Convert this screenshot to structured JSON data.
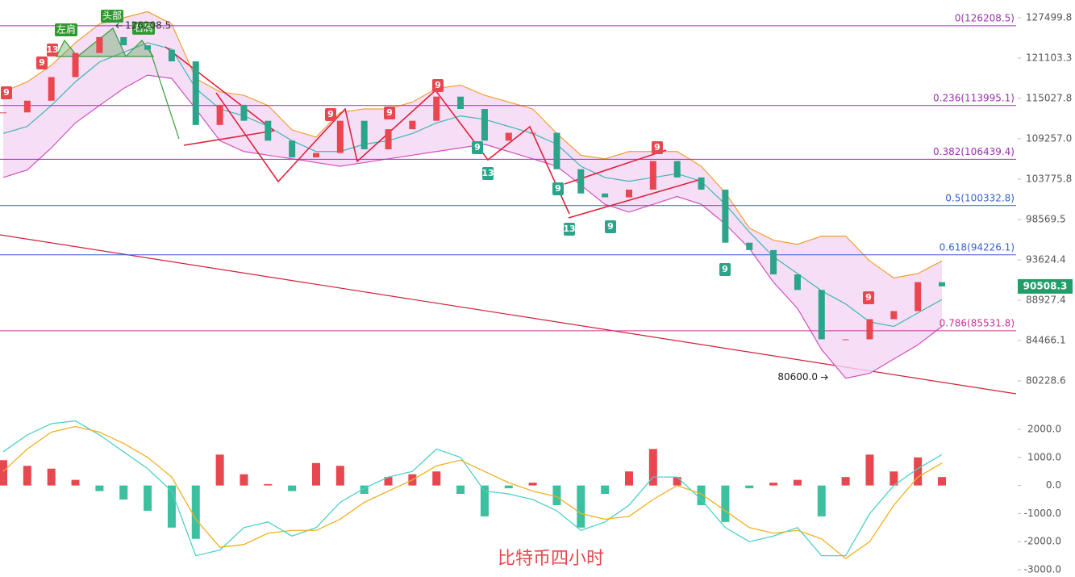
{
  "chart_data": [
    {
      "type": "candlestick",
      "title": "比特币四小时",
      "log_scale": true,
      "ylim": [
        77152,
        130421
      ],
      "yticks": [
        127499.8,
        121103.3,
        115027.8,
        {
          "value": 109257,
          "label": "109257.0"
        },
        103775.8,
        98569.5,
        93624.4,
        88927.4,
        84466.1,
        80228.6
      ],
      "up_color": "#e8474f",
      "down_color": "#2aa58a",
      "values": [
        113000,
        114700,
        118200,
        121900,
        124400,
        123100,
        122400,
        120600,
        111200,
        114100,
        111800,
        109000,
        106700,
        107300,
        111800,
        107800,
        110600,
        111800,
        115300,
        113500,
        109000,
        110100,
        110100,
        105100,
        101900,
        101400,
        102400,
        106200,
        104000,
        102400,
        95700,
        94800,
        91900,
        90100,
        84600,
        84600,
        86800,
        87700,
        91000,
        90508.3
      ],
      "bands": [
        {
          "color": "#f0a030",
          "values": [
            116000,
            117500,
            120000,
            123500,
            126500,
            127500,
            128500,
            126500,
            118000,
            116000,
            115500,
            114000,
            110500,
            109500,
            113000,
            113500,
            113500,
            114500,
            116500,
            117000,
            115500,
            114500,
            113500,
            110000,
            107000,
            106500,
            107500,
            107500,
            107500,
            105500,
            102000,
            97500,
            96000,
            95500,
            96500,
            96500,
            93500,
            91500,
            92000,
            93500
          ]
        },
        {
          "color": "#3cb8b0",
          "values": [
            110000,
            111000,
            114000,
            117500,
            120500,
            122000,
            123500,
            122500,
            116500,
            113500,
            112500,
            111000,
            109000,
            107500,
            107500,
            108500,
            109000,
            110000,
            111500,
            112500,
            112000,
            111000,
            110000,
            108500,
            105500,
            104000,
            103500,
            104000,
            104500,
            103500,
            100500,
            97000,
            94000,
            92000,
            90000,
            88500,
            86500,
            86000,
            87500,
            89000
          ]
        },
        {
          "color": "#d04fc0",
          "values": [
            104000,
            105000,
            108000,
            111500,
            114000,
            116500,
            118500,
            118000,
            113500,
            109000,
            107500,
            107000,
            106500,
            106000,
            105500,
            106000,
            106500,
            107000,
            107500,
            108000,
            108500,
            107500,
            106500,
            105500,
            103000,
            100500,
            99500,
            100500,
            101500,
            100500,
            98000,
            95000,
            91000,
            88000,
            83500,
            80500,
            81000,
            82500,
            84000,
            86000
          ]
        }
      ],
      "band_fill": "#f5d6f5",
      "fib_levels": [
        {
          "label": "0(126208.5)",
          "value": 126208.5,
          "color": "#9b30b0"
        },
        {
          "label": "0.236(113995.1)",
          "value": 113995.1,
          "color": "#9b30b0"
        },
        {
          "label": "0.382(106439.4)",
          "value": 106439.4,
          "color": "#9b30b0"
        },
        {
          "label": "0.5(100332.8)",
          "value": 100332.8,
          "color": "#3a5fcf"
        },
        {
          "label": "0.618(94226.1)",
          "value": 94226.1,
          "color": "#3a5fcf"
        },
        {
          "label": "0.786(85531.8)",
          "value": 85531.8,
          "color": "#cc3399"
        }
      ],
      "last_price": {
        "value": 90508.3,
        "color": "#1f9e6a"
      },
      "low_mark": {
        "value": 80600,
        "label": "80600.0"
      },
      "head_mark": 126208.5,
      "pattern_labels": [
        "左肩",
        "头部",
        "右肩"
      ],
      "td_markers": [
        {
          "label": "9",
          "color": "#e8474f"
        },
        {
          "label": "13",
          "color": "#e8474f"
        },
        {
          "label": "9",
          "color": "#e8474f"
        },
        {
          "label": "9",
          "color": "#e8474f"
        },
        {
          "label": "9",
          "color": "#e8474f"
        },
        {
          "label": "9",
          "color": "#e8474f"
        },
        {
          "label": "9",
          "color": "#2aa58a"
        },
        {
          "label": "13",
          "color": "#2aa58a"
        },
        {
          "label": "9",
          "color": "#2aa58a"
        },
        {
          "label": "13",
          "color": "#2aa58a"
        },
        {
          "label": "9",
          "color": "#2aa58a"
        },
        {
          "label": "9",
          "color": "#e8474f"
        },
        {
          "label": "9",
          "color": "#2aa58a"
        },
        {
          "label": "9",
          "color": "#e8474f"
        }
      ]
    },
    {
      "type": "macd",
      "ylim": [
        -3000,
        2000
      ],
      "yticks": [
        {
          "value": 2000,
          "label": "2000.0"
        },
        {
          "value": 1000,
          "label": "1000.0"
        },
        {
          "value": 0,
          "label": "0.0"
        },
        {
          "value": -1000,
          "label": "-1000.0"
        },
        {
          "value": -2000,
          "label": "-2000.0"
        },
        {
          "value": -3000,
          "label": "-3000.0"
        }
      ],
      "histogram": [
        900,
        700,
        600,
        200,
        -200,
        -500,
        -900,
        -1500,
        -1900,
        1100,
        400,
        50,
        -200,
        800,
        700,
        -300,
        300,
        400,
        500,
        -300,
        -1100,
        -100,
        100,
        -700,
        -1500,
        -300,
        500,
        1300,
        300,
        -700,
        -1300,
        -100,
        100,
        200,
        -1100,
        300,
        1100,
        500,
        1000,
        300
      ],
      "up_color": "#e8474f",
      "down_color": "#3cc0a0",
      "series": [
        {
          "color": "#4fd0c8",
          "values": [
            1200,
            1800,
            2200,
            2300,
            1800,
            1200,
            600,
            -200,
            -2500,
            -2300,
            -1500,
            -1300,
            -1800,
            -1500,
            -600,
            -100,
            300,
            500,
            1300,
            1000,
            -200,
            -300,
            -500,
            -900,
            -1600,
            -1300,
            -700,
            300,
            300,
            -500,
            -1500,
            -2000,
            -1800,
            -1500,
            -2500,
            -2500,
            -1000,
            0,
            600,
            1100
          ]
        },
        {
          "color": "#f0b020",
          "values": [
            500,
            1300,
            1900,
            2100,
            1900,
            1500,
            1000,
            300,
            -1200,
            -2200,
            -2100,
            -1700,
            -1600,
            -1600,
            -1200,
            -600,
            -200,
            200,
            700,
            900,
            500,
            100,
            -200,
            -400,
            -1000,
            -1200,
            -1100,
            -500,
            0,
            -300,
            -900,
            -1500,
            -1700,
            -1600,
            -1900,
            -2600,
            -2000,
            -700,
            300,
            800
          ]
        }
      ]
    }
  ]
}
